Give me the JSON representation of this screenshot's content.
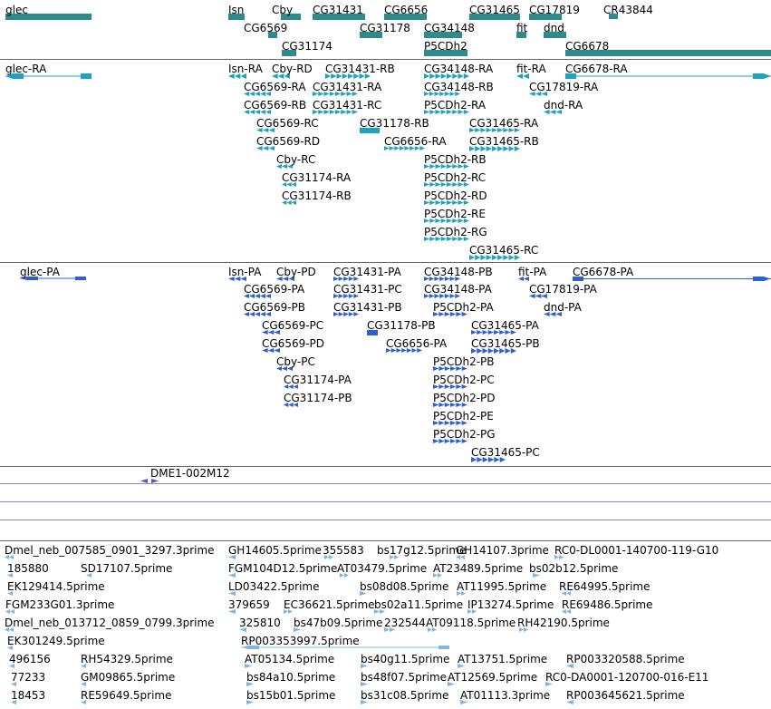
{
  "colors": {
    "gene": "#2e8b8b",
    "transcript": "#1aa3c4",
    "protein": "#2a5fd6",
    "clone": "#6b4fc8",
    "est": "#7fb4e3",
    "separator": "#8a8ac8"
  },
  "tracks": {
    "genes": [
      {
        "label": "glec",
        "strand": "none"
      },
      {
        "label": "Isn",
        "strand": "none"
      },
      {
        "label": "Cby",
        "strand": "none"
      },
      {
        "label": "CG31431",
        "strand": "none"
      },
      {
        "label": "CG6656",
        "strand": "none"
      },
      {
        "label": "CG31465",
        "strand": "none"
      },
      {
        "label": "CG17819",
        "strand": "none"
      },
      {
        "label": "CR43844",
        "strand": "none"
      },
      {
        "label": "CG6569",
        "strand": "none"
      },
      {
        "label": "CG31178",
        "strand": "none"
      },
      {
        "label": "CG34148",
        "strand": "none"
      },
      {
        "label": "fit",
        "strand": "none"
      },
      {
        "label": "dnd",
        "strand": "none"
      },
      {
        "label": "CG31174",
        "strand": "none"
      },
      {
        "label": "P5CDh2",
        "strand": "none"
      },
      {
        "label": "CG6678",
        "strand": "none"
      }
    ],
    "transcripts": [
      {
        "label": "glec-RA",
        "strand": "minus"
      },
      {
        "label": "Isn-RA",
        "strand": "minus"
      },
      {
        "label": "Cby-RD",
        "strand": "minus"
      },
      {
        "label": "CG31431-RB",
        "strand": "plus"
      },
      {
        "label": "CG34148-RA",
        "strand": "plus"
      },
      {
        "label": "fit-RA",
        "strand": "minus"
      },
      {
        "label": "CG6678-RA",
        "strand": "plus"
      },
      {
        "label": "CG6569-RA",
        "strand": "minus"
      },
      {
        "label": "CG31431-RA",
        "strand": "plus"
      },
      {
        "label": "CG34148-RB",
        "strand": "plus"
      },
      {
        "label": "CG17819-RA",
        "strand": "minus"
      },
      {
        "label": "CG6569-RB",
        "strand": "minus"
      },
      {
        "label": "CG31431-RC",
        "strand": "plus"
      },
      {
        "label": "P5CDh2-RA",
        "strand": "plus"
      },
      {
        "label": "dnd-RA",
        "strand": "minus"
      },
      {
        "label": "CG6569-RC",
        "strand": "minus"
      },
      {
        "label": "CG31178-RB",
        "strand": "none"
      },
      {
        "label": "CG31465-RA",
        "strand": "plus"
      },
      {
        "label": "CG6569-RD",
        "strand": "minus"
      },
      {
        "label": "CG6656-RA",
        "strand": "plus"
      },
      {
        "label": "CG31465-RB",
        "strand": "plus"
      },
      {
        "label": "Cby-RC",
        "strand": "minus"
      },
      {
        "label": "P5CDh2-RB",
        "strand": "plus"
      },
      {
        "label": "CG31174-RA",
        "strand": "minus"
      },
      {
        "label": "P5CDh2-RC",
        "strand": "plus"
      },
      {
        "label": "CG31174-RB",
        "strand": "minus"
      },
      {
        "label": "P5CDh2-RD",
        "strand": "plus"
      },
      {
        "label": "P5CDh2-RE",
        "strand": "plus"
      },
      {
        "label": "P5CDh2-RG",
        "strand": "plus"
      },
      {
        "label": "CG31465-RC",
        "strand": "plus"
      }
    ],
    "proteins": [
      {
        "label": "glec-PA",
        "strand": "minus"
      },
      {
        "label": "Isn-PA",
        "strand": "minus"
      },
      {
        "label": "Cby-PD",
        "strand": "minus"
      },
      {
        "label": "CG31431-PA",
        "strand": "plus"
      },
      {
        "label": "CG34148-PB",
        "strand": "plus"
      },
      {
        "label": "fit-PA",
        "strand": "minus"
      },
      {
        "label": "CG6678-PA",
        "strand": "plus"
      },
      {
        "label": "CG6569-PA",
        "strand": "minus"
      },
      {
        "label": "CG31431-PC",
        "strand": "plus"
      },
      {
        "label": "CG34148-PA",
        "strand": "plus"
      },
      {
        "label": "CG17819-PA",
        "strand": "minus"
      },
      {
        "label": "CG6569-PB",
        "strand": "minus"
      },
      {
        "label": "CG31431-PB",
        "strand": "plus"
      },
      {
        "label": "P5CDh2-PA",
        "strand": "plus"
      },
      {
        "label": "dnd-PA",
        "strand": "minus"
      },
      {
        "label": "CG6569-PC",
        "strand": "minus"
      },
      {
        "label": "CG31178-PB",
        "strand": "none"
      },
      {
        "label": "CG31465-PA",
        "strand": "plus"
      },
      {
        "label": "CG6569-PD",
        "strand": "minus"
      },
      {
        "label": "CG6656-PA",
        "strand": "plus"
      },
      {
        "label": "CG31465-PB",
        "strand": "plus"
      },
      {
        "label": "Cby-PC",
        "strand": "minus"
      },
      {
        "label": "P5CDh2-PB",
        "strand": "plus"
      },
      {
        "label": "CG31174-PA",
        "strand": "minus"
      },
      {
        "label": "P5CDh2-PC",
        "strand": "plus"
      },
      {
        "label": "CG31174-PB",
        "strand": "minus"
      },
      {
        "label": "P5CDh2-PD",
        "strand": "plus"
      },
      {
        "label": "P5CDh2-PE",
        "strand": "plus"
      },
      {
        "label": "P5CDh2-PG",
        "strand": "plus"
      },
      {
        "label": "CG31465-PC",
        "strand": "plus"
      }
    ],
    "clones": [
      {
        "label": "DME1-002M12",
        "strand": "none"
      }
    ],
    "ests": [
      {
        "label": "Dmel_neb_007585_0901_3297.3prime",
        "strand": "minus"
      },
      {
        "label": "GH14605.5prime",
        "strand": "minus"
      },
      {
        "label": "355583",
        "strand": "plus"
      },
      {
        "label": "bs17g12.5prime",
        "strand": "plus"
      },
      {
        "label": "GH14107.3prime",
        "strand": "minus"
      },
      {
        "label": "RC0-DL0001-140700-119-G10",
        "strand": "plus"
      },
      {
        "label": "185880",
        "strand": "minus"
      },
      {
        "label": "SD17107.5prime",
        "strand": "minus"
      },
      {
        "label": "FGM104D12.5prime",
        "strand": "minus"
      },
      {
        "label": "AT03479.5prime",
        "strand": "plus"
      },
      {
        "label": "AT23489.5prime",
        "strand": "plus"
      },
      {
        "label": "bs02b12.5prime",
        "strand": "plus"
      },
      {
        "label": "EK129414.5prime",
        "strand": "minus"
      },
      {
        "label": "LD03422.5prime",
        "strand": "minus"
      },
      {
        "label": "bs08d08.5prime",
        "strand": "plus"
      },
      {
        "label": "AT11995.5prime",
        "strand": "plus"
      },
      {
        "label": "RE64995.5prime",
        "strand": "minus"
      },
      {
        "label": "FGM233G01.3prime",
        "strand": "minus"
      },
      {
        "label": "379659",
        "strand": "minus"
      },
      {
        "label": "EC36621.5prime",
        "strand": "plus"
      },
      {
        "label": "bs02a11.5prime",
        "strand": "plus"
      },
      {
        "label": "IP13274.5prime",
        "strand": "plus"
      },
      {
        "label": "RE69486.5prime",
        "strand": "minus"
      },
      {
        "label": "Dmel_neb_013712_0859_0799.3prime",
        "strand": "minus"
      },
      {
        "label": "325810",
        "strand": "minus"
      },
      {
        "label": "bs47b09.5prime",
        "strand": "plus"
      },
      {
        "label": "232544",
        "strand": "plus"
      },
      {
        "label": "AT09118.5prime",
        "strand": "plus"
      },
      {
        "label": "RH42190.5prime",
        "strand": "plus"
      },
      {
        "label": "EK301249.5prime",
        "strand": "minus"
      },
      {
        "label": "RP003353997.5prime",
        "strand": "minus"
      },
      {
        "label": "496156",
        "strand": "minus"
      },
      {
        "label": "RH54329.5prime",
        "strand": "minus"
      },
      {
        "label": "AT05134.5prime",
        "strand": "plus"
      },
      {
        "label": "bs40g11.5prime",
        "strand": "plus"
      },
      {
        "label": "AT13751.5prime",
        "strand": "plus"
      },
      {
        "label": "RP003320588.5prime",
        "strand": "minus"
      },
      {
        "label": "77233",
        "strand": "minus"
      },
      {
        "label": "GM09865.5prime",
        "strand": "minus"
      },
      {
        "label": "bs84a10.5prime",
        "strand": "plus"
      },
      {
        "label": "bs48f07.5prime",
        "strand": "plus"
      },
      {
        "label": "AT12569.5prime",
        "strand": "plus"
      },
      {
        "label": "RC0-DA0001-120700-016-E11",
        "strand": "plus"
      },
      {
        "label": "18453",
        "strand": "minus"
      },
      {
        "label": "RE59649.5prime",
        "strand": "minus"
      },
      {
        "label": "bs15b01.5prime",
        "strand": "plus"
      },
      {
        "label": "bs31c08.5prime",
        "strand": "plus"
      },
      {
        "label": "AT01113.3prime",
        "strand": "plus"
      },
      {
        "label": "RP003645621.5prime",
        "strand": "minus"
      }
    ]
  }
}
